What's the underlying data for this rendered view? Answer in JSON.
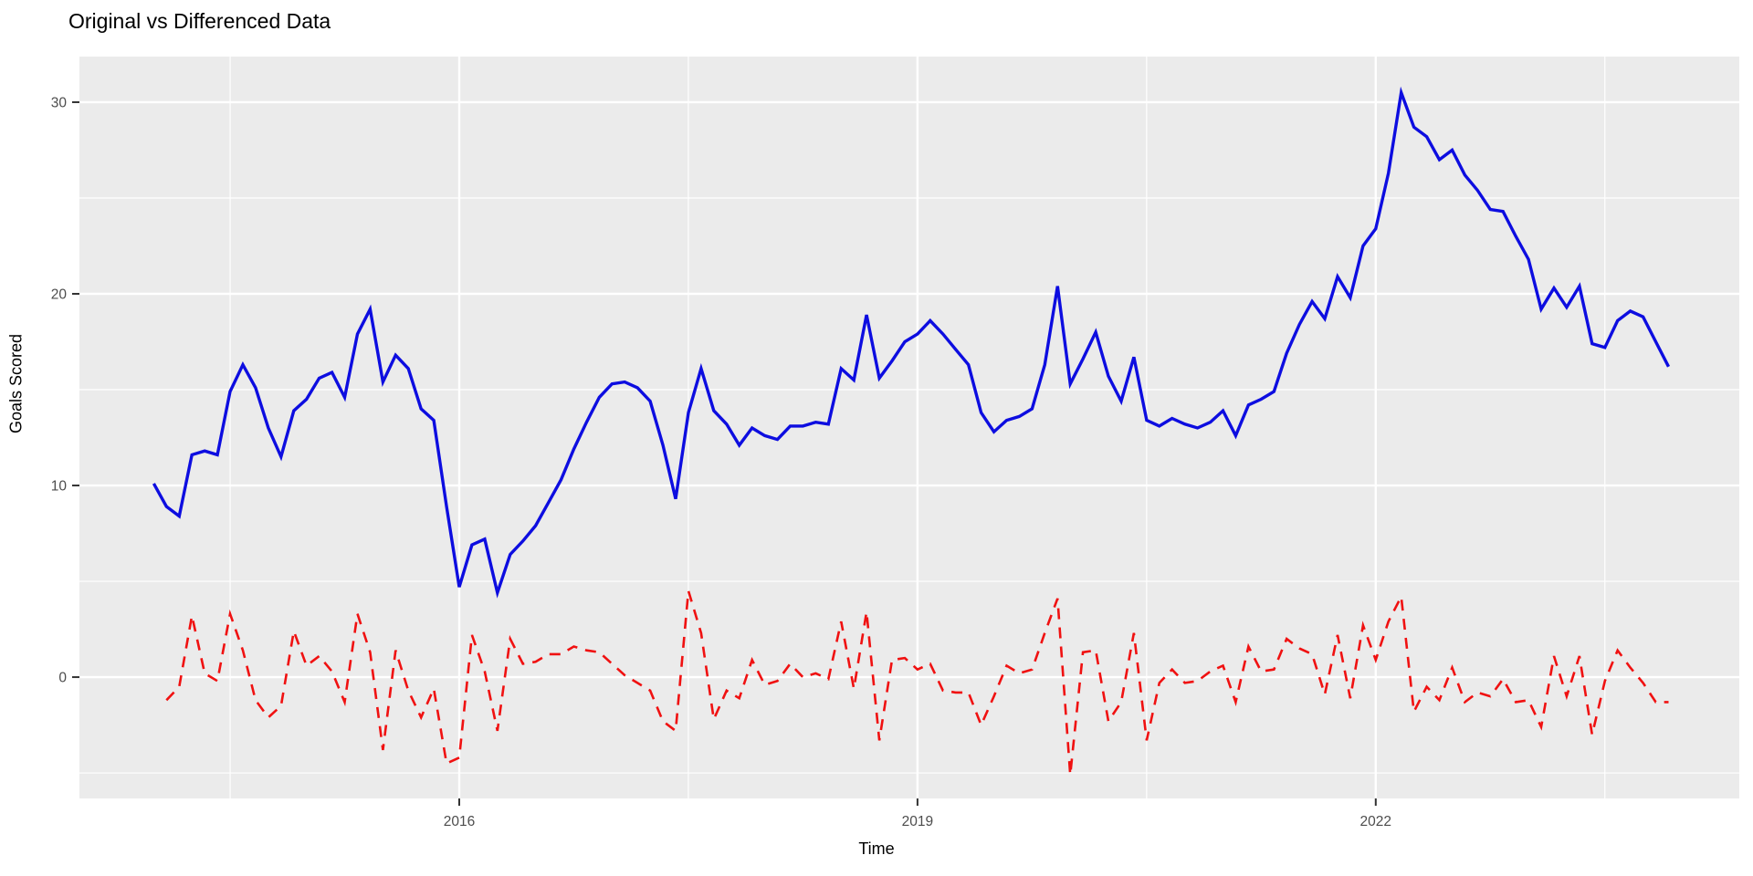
{
  "title": "Original vs Differenced Data",
  "chart_data": {
    "type": "line",
    "title": "Original vs Differenced Data",
    "xlabel": "Time",
    "ylabel": "Goals Scored",
    "x_axis": {
      "tick_labels": [
        "2016",
        "2019",
        "2022"
      ],
      "tick_years": [
        2016,
        2019,
        2022
      ],
      "minor_grid_years": [
        2014.5,
        2017.5,
        2020.5,
        2023.5
      ],
      "start": "2014-01",
      "frequency": "monthly"
    },
    "y_axis": {
      "tick_labels": [
        "0",
        "10",
        "20",
        "30"
      ],
      "tick_values": [
        0,
        10,
        20,
        30
      ],
      "minor_grid_values": [
        -5,
        5,
        15,
        25
      ],
      "ylim": [
        -6.33,
        32.38
      ]
    },
    "grid": "on",
    "legend": "none",
    "panel_background": "#EBEBEB",
    "grid_color": "#FFFFFF",
    "tick_label_color": "#4D4D4D",
    "series": [
      {
        "name": "Original",
        "color": "#0D0DE0",
        "style": "solid",
        "start_month_index": 0,
        "values": [
          10.1,
          8.9,
          8.4,
          11.6,
          11.8,
          11.6,
          14.9,
          16.3,
          15.1,
          13.0,
          11.5,
          13.9,
          14.5,
          15.6,
          15.9,
          14.6,
          17.9,
          19.2,
          15.4,
          16.8,
          16.1,
          14.0,
          13.4,
          8.9,
          4.7,
          6.9,
          7.2,
          4.4,
          6.4,
          7.1,
          7.9,
          9.1,
          10.3,
          11.9,
          13.3,
          14.6,
          15.3,
          15.4,
          15.1,
          14.4,
          12.1,
          9.3,
          13.8,
          16.1,
          13.9,
          13.2,
          12.1,
          13.0,
          12.6,
          12.4,
          13.1,
          13.1,
          13.3,
          13.2,
          16.1,
          15.5,
          18.9,
          15.6,
          16.5,
          17.5,
          17.9,
          18.6,
          17.9,
          17.1,
          16.3,
          13.8,
          12.8,
          13.4,
          13.6,
          14.0,
          16.3,
          20.4,
          15.3,
          16.6,
          18.0,
          15.7,
          14.4,
          16.7,
          13.4,
          13.1,
          13.5,
          13.2,
          13.0,
          13.3,
          13.9,
          12.6,
          14.2,
          14.5,
          14.9,
          16.9,
          18.4,
          19.6,
          18.7,
          20.9,
          19.8,
          22.5,
          23.4,
          26.3,
          30.5,
          28.7,
          28.2,
          27.0,
          27.5,
          26.2,
          25.4,
          24.4,
          24.3,
          23.0,
          21.8,
          19.2,
          20.3,
          19.3,
          20.4,
          17.4,
          17.2,
          18.6,
          19.1,
          18.8,
          17.5,
          16.2
        ]
      },
      {
        "name": "Differenced",
        "color": "#F01111",
        "style": "dashed",
        "start_month_index": 1,
        "values": [
          -1.2,
          -0.5,
          3.2,
          0.2,
          -0.2,
          3.3,
          1.4,
          -1.2,
          -2.1,
          -1.5,
          2.4,
          0.6,
          1.1,
          0.3,
          -1.3,
          3.3,
          1.3,
          -3.8,
          1.4,
          -0.7,
          -2.1,
          -0.6,
          -4.5,
          -4.2,
          2.2,
          0.3,
          -2.8,
          2.0,
          0.7,
          0.8,
          1.2,
          1.2,
          1.6,
          1.4,
          1.3,
          0.7,
          0.1,
          -0.3,
          -0.7,
          -2.3,
          -2.8,
          4.5,
          2.3,
          -2.2,
          -0.7,
          -1.1,
          0.9,
          -0.4,
          -0.2,
          0.7,
          0.0,
          0.2,
          -0.1,
          2.9,
          -0.6,
          3.4,
          -3.3,
          0.9,
          1.0,
          0.4,
          0.7,
          -0.7,
          -0.8,
          -0.8,
          -2.5,
          -1.0,
          0.6,
          0.2,
          0.4,
          2.3,
          4.1,
          -5.1,
          1.3,
          1.4,
          -2.3,
          -1.3,
          2.3,
          -3.3,
          -0.3,
          0.4,
          -0.3,
          -0.2,
          0.3,
          0.6,
          -1.3,
          1.6,
          0.3,
          0.4,
          2.0,
          1.5,
          1.2,
          -0.9,
          2.2,
          -1.1,
          2.7,
          0.9,
          2.9,
          4.2,
          -1.8,
          -0.5,
          -1.2,
          0.5,
          -1.3,
          -0.8,
          -1.0,
          -0.1,
          -1.3,
          -1.2,
          -2.6,
          1.1,
          -1.0,
          1.1,
          -3.0,
          -0.2,
          1.4,
          0.5,
          -0.3,
          -1.3,
          -1.3
        ]
      }
    ]
  }
}
